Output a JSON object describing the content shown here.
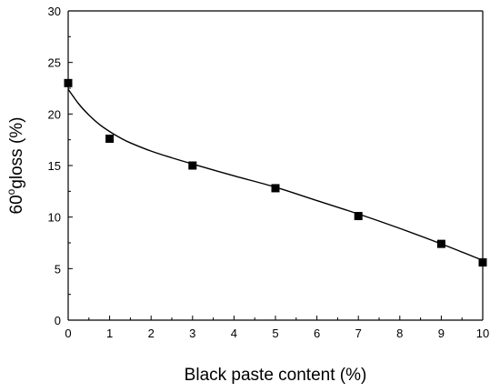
{
  "chart_data": {
    "type": "scatter",
    "title": "",
    "xlabel": "Black paste content (%)",
    "ylabel_main": "60",
    "ylabel_sup": "o",
    "ylabel_tail": "gloss (%)",
    "xlim": [
      0,
      10
    ],
    "ylim": [
      0,
      30
    ],
    "x_ticks": [
      0,
      1,
      2,
      3,
      4,
      5,
      6,
      7,
      8,
      9,
      10
    ],
    "y_ticks": [
      0,
      5,
      10,
      15,
      20,
      25,
      30
    ],
    "grid": false,
    "legend": "none",
    "series": [
      {
        "marker": "square",
        "color": "#000000",
        "x": [
          0,
          1,
          3,
          5,
          7,
          9,
          10
        ],
        "y": [
          23.0,
          17.6,
          15.0,
          12.8,
          10.1,
          7.4,
          5.6
        ]
      }
    ],
    "fit_curve": {
      "color": "#000000",
      "x": [
        0,
        0.25,
        0.5,
        0.75,
        1,
        1.25,
        1.5,
        2,
        2.5,
        3,
        4,
        5,
        6,
        7,
        8,
        9,
        10
      ],
      "y": [
        22.4,
        21.0,
        19.9,
        19.0,
        18.3,
        17.7,
        17.2,
        16.4,
        15.75,
        15.15,
        14.0,
        12.9,
        11.6,
        10.3,
        8.9,
        7.4,
        5.8
      ]
    }
  }
}
